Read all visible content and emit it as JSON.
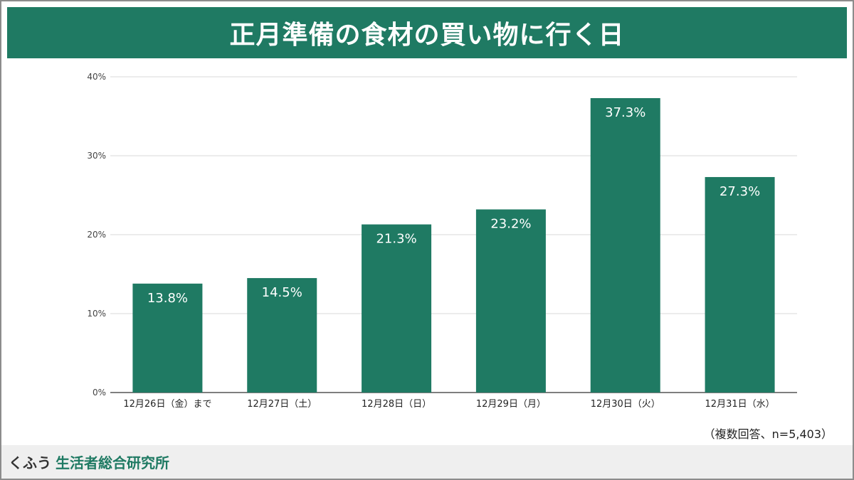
{
  "title": "正月準備の食材の買い物に行く日",
  "note": "（複数回答、n=5,403）",
  "footer": {
    "brand_kufuu": "くふう",
    "brand_institute": "生活者総合研究所"
  },
  "colors": {
    "accent": "#1f7a63",
    "grid": "#d9d9d9",
    "axis": "#333333"
  },
  "chart_data": {
    "type": "bar",
    "categories": [
      "12月26日（金）まで",
      "12月27日（土）",
      "12月28日（日）",
      "12月29日（月）",
      "12月30日（火）",
      "12月31日（水）"
    ],
    "series": [
      {
        "values": [
          13.8,
          14.5,
          21.3,
          23.2,
          37.3,
          27.3
        ]
      }
    ],
    "value_labels": [
      "13.8%",
      "14.5%",
      "21.3%",
      "23.2%",
      "37.3%",
      "27.3%"
    ],
    "yticks": [
      "0%",
      "10%",
      "20%",
      "30%",
      "40%"
    ],
    "ylim": [
      0,
      40
    ],
    "grid": true,
    "legend": "none"
  }
}
